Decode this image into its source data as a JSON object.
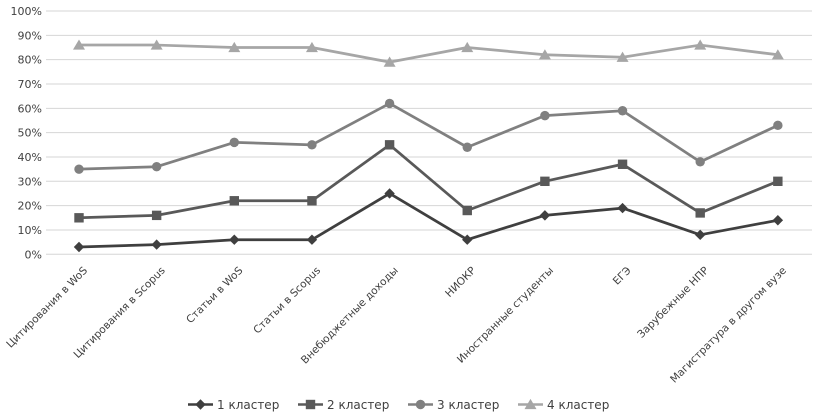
{
  "chart_data": {
    "type": "line",
    "title": "",
    "xlabel": "",
    "ylabel": "",
    "categories": [
      "Цитирования в WoS",
      "Цитирования в Scopus",
      "Статьи в WoS",
      "Статьи в Scopus",
      "Внебюджетные доходы",
      "НИОКР",
      "Иностранные студенты",
      "ЕГЭ",
      "Зарубежные НПР",
      "Магистратура в другом вузе"
    ],
    "series": [
      {
        "name": "1 кластер",
        "marker": "diamond",
        "color": "#3f3f3f",
        "values": [
          3,
          4,
          6,
          6,
          25,
          6,
          16,
          19,
          8,
          14
        ]
      },
      {
        "name": "2 кластер",
        "marker": "square",
        "color": "#595959",
        "values": [
          15,
          16,
          22,
          22,
          45,
          18,
          30,
          37,
          17,
          30
        ]
      },
      {
        "name": "3 кластер",
        "marker": "circle",
        "color": "#808080",
        "values": [
          35,
          36,
          46,
          45,
          62,
          44,
          57,
          59,
          38,
          53
        ]
      },
      {
        "name": "4 кластер",
        "marker": "triangle",
        "color": "#a6a6a6",
        "values": [
          86,
          86,
          85,
          85,
          79,
          85,
          82,
          81,
          86,
          82
        ]
      }
    ],
    "ylim": [
      0,
      100
    ],
    "ytick_step": 10,
    "yticks": [
      "0%",
      "10%",
      "20%",
      "30%",
      "40%",
      "50%",
      "60%",
      "70%",
      "80%",
      "90%",
      "100%"
    ],
    "grid": true,
    "legend_position": "bottom",
    "legend": [
      "1 кластер",
      "2 кластер",
      "3 кластер",
      "4 кластер"
    ],
    "colors": {
      "background": "#ffffff",
      "gridline": "#d6d6d6",
      "text": "#404040"
    }
  }
}
